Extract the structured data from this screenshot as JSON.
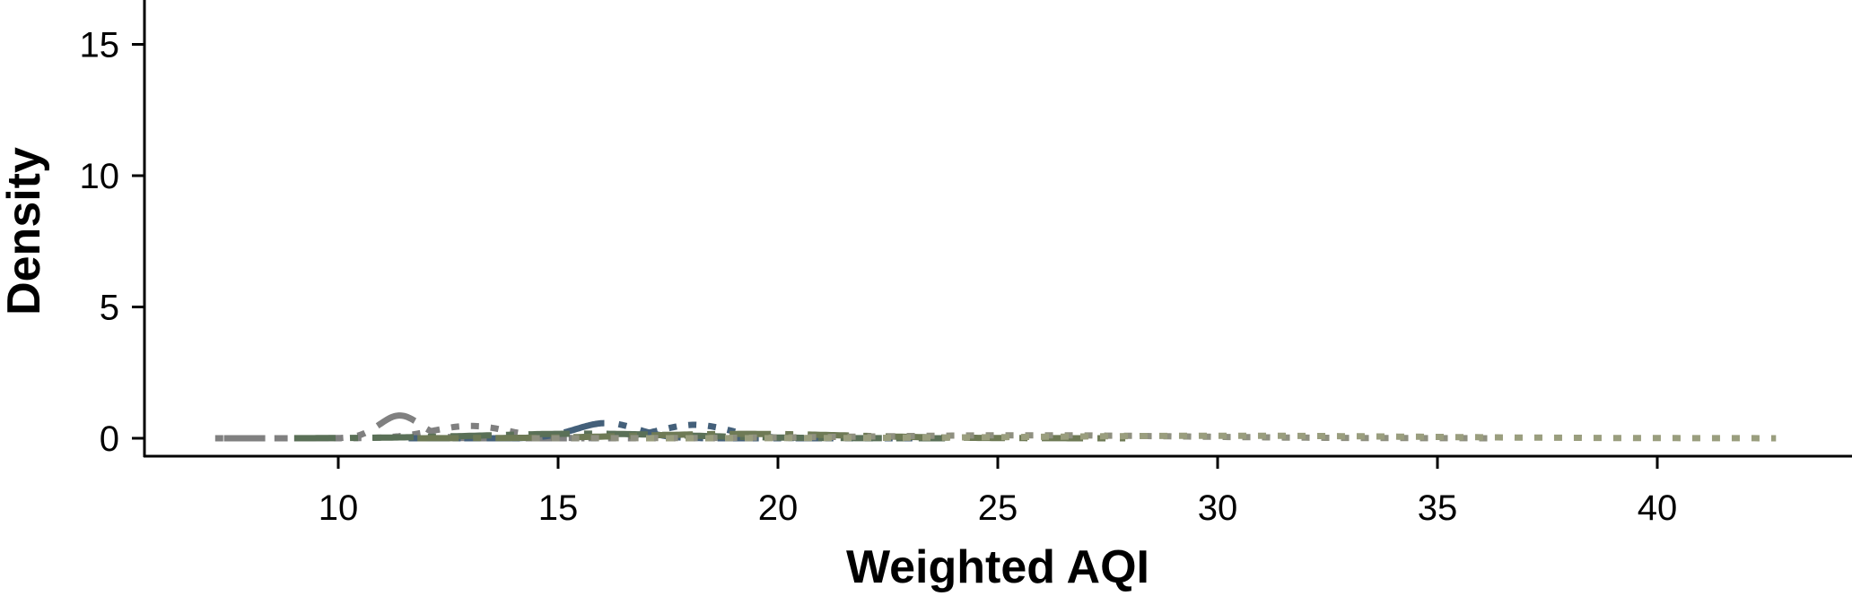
{
  "chart_data": {
    "type": "line",
    "title": "",
    "xlabel": "Weighted AQI",
    "ylabel": "Density",
    "xlim": [
      5.3,
      44.2
    ],
    "ylim": [
      -0.8,
      16.7
    ],
    "xticks": [
      10,
      15,
      20,
      25,
      30,
      35,
      40
    ],
    "yticks": [
      0,
      5,
      10,
      15
    ],
    "grid": false,
    "legend": "none",
    "series": [
      {
        "color": "#808080",
        "dash": "dashdot",
        "mean": 11.4,
        "sd": 0.46,
        "range": [
          7.4,
          15.6
        ]
      },
      {
        "color": "#808080",
        "dash": "dotted",
        "mean": 13.0,
        "sd": 0.85,
        "range": [
          7.2,
          19.4
        ]
      },
      {
        "color": "#44607a",
        "dash": "dashdot",
        "mean": 16.1,
        "sd": 0.69,
        "range": [
          11.6,
          21.0
        ]
      },
      {
        "color": "#44607a",
        "dash": "dotted",
        "mean": 18.1,
        "sd": 0.78,
        "range": [
          12.6,
          23.6
        ]
      },
      {
        "color": "#5a7057",
        "dash": "dashdot",
        "mean": 15.6,
        "sd": 2.3,
        "range": [
          9.0,
          23.8
        ]
      },
      {
        "color": "#6e7a55",
        "dash": "dashdot",
        "mean": 19.3,
        "sd": 2.4,
        "range": [
          11.8,
          27.9
        ]
      },
      {
        "color": "#8f9080",
        "dash": "dotted",
        "mean": 25.7,
        "sd": 3.5,
        "range": [
          14.4,
          36.2
        ]
      },
      {
        "color": "#9a9e7e",
        "dash": "dotted",
        "mean": 30.3,
        "sd": 4.2,
        "range": [
          17.0,
          42.7
        ]
      }
    ]
  }
}
